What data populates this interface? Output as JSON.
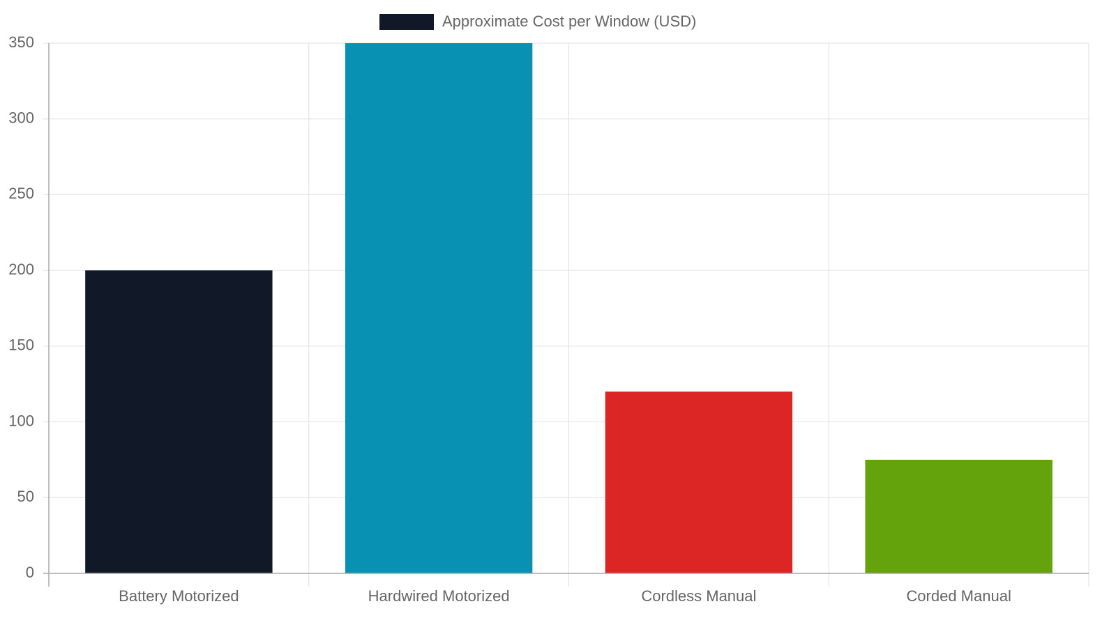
{
  "chart_data": {
    "type": "bar",
    "categories": [
      "Battery Motorized",
      "Hardwired Motorized",
      "Cordless Manual",
      "Corded Manual"
    ],
    "series": [
      {
        "name": "Approximate Cost per Window (USD)",
        "colors": [
          "#111827",
          "#0891b2",
          "#dc2626",
          "#65a30d"
        ],
        "values": [
          200,
          350,
          120,
          75
        ]
      }
    ],
    "ylim": [
      0,
      350
    ],
    "yticks": [
      0,
      50,
      100,
      150,
      200,
      250,
      300,
      350
    ],
    "grid": true,
    "legend": "top"
  }
}
